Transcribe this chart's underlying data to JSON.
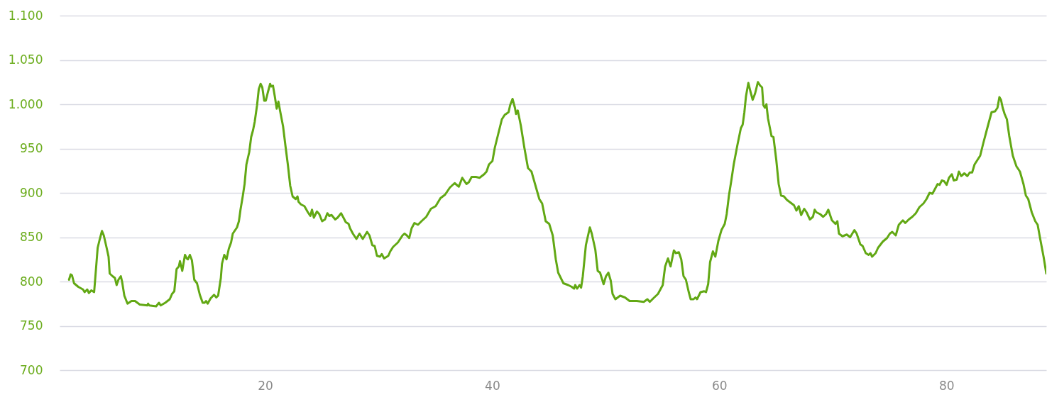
{
  "chart_data": {
    "type": "line",
    "color": "#62a814",
    "grid": "y",
    "xlim": [
      1.9,
      88.8
    ],
    "xticks": [
      20,
      40,
      60,
      80
    ],
    "ylim": [
      700,
      1100
    ],
    "yticks": [
      700,
      750,
      800,
      850,
      900,
      950,
      {
        "value": 1000,
        "label": "1.000"
      },
      {
        "value": 1050,
        "label": "1.050"
      },
      {
        "value": 1100,
        "label": "1.100"
      }
    ],
    "x": [
      2.73,
      2.87,
      2.99,
      3.05,
      3.17,
      3.54,
      3.96,
      4.1,
      4.33,
      4.48,
      4.69,
      4.94,
      5.04,
      5.25,
      5.42,
      5.63,
      5.79,
      6.04,
      6.21,
      6.31,
      6.56,
      6.77,
      6.92,
      7.08,
      7.29,
      7.4,
      7.6,
      7.88,
      8.23,
      8.54,
      8.96,
      9.63,
      9.69,
      9.8,
      10.4,
      10.65,
      10.8,
      11.2,
      11.6,
      11.8,
      12.0,
      12.2,
      12.4,
      12.5,
      12.7,
      12.94,
      13.1,
      13.2,
      13.37,
      13.55,
      13.76,
      14.0,
      14.25,
      14.5,
      14.66,
      14.8,
      14.94,
      15.2,
      15.5,
      15.7,
      15.86,
      16.1,
      16.2,
      16.4,
      16.6,
      16.8,
      17.0,
      17.15,
      17.52,
      17.69,
      17.83,
      18.04,
      18.19,
      18.35,
      18.6,
      18.77,
      18.94,
      19.08,
      19.29,
      19.44,
      19.6,
      19.75,
      19.92,
      20.06,
      20.23,
      20.44,
      20.54,
      20.69,
      20.85,
      21.02,
      21.17,
      21.31,
      21.58,
      21.79,
      22.0,
      22.21,
      22.42,
      22.69,
      22.85,
      22.94,
      23.15,
      23.46,
      23.77,
      23.98,
      24.13,
      24.29,
      24.56,
      24.77,
      25.02,
      25.27,
      25.48,
      25.65,
      25.85,
      26.17,
      26.38,
      26.69,
      26.9,
      27.1,
      27.35,
      27.48,
      27.73,
      28.04,
      28.31,
      28.6,
      28.98,
      29.19,
      29.44,
      29.65,
      29.85,
      30.12,
      30.27,
      30.48,
      30.85,
      31.02,
      31.27,
      31.69,
      32.1,
      32.27,
      32.48,
      32.69,
      32.9,
      33.15,
      33.46,
      33.77,
      34.19,
      34.6,
      35.02,
      35.44,
      35.85,
      36.27,
      36.69,
      37.06,
      37.36,
      37.73,
      37.94,
      38.19,
      38.56,
      38.88,
      39.29,
      39.5,
      39.71,
      40.02,
      40.23,
      40.54,
      40.85,
      41.1,
      41.44,
      41.58,
      41.79,
      42.0,
      42.1,
      42.25,
      42.52,
      42.83,
      43.15,
      43.46,
      43.77,
      44.15,
      44.4,
      44.71,
      45.02,
      45.33,
      45.6,
      45.81,
      46.27,
      46.69,
      47.0,
      47.21,
      47.31,
      47.48,
      47.69,
      47.83,
      47.98,
      48.25,
      48.6,
      48.77,
      49.08,
      49.29,
      49.5,
      49.81,
      50.02,
      50.23,
      50.44,
      50.6,
      50.85,
      51.27,
      51.69,
      52.1,
      52.73,
      53.35,
      53.67,
      53.88,
      54.19,
      54.6,
      55.02,
      55.23,
      55.48,
      55.71,
      56.0,
      56.17,
      56.44,
      56.65,
      56.85,
      57.06,
      57.31,
      57.48,
      57.73,
      57.9,
      58.04,
      58.35,
      58.67,
      58.83,
      59.02,
      59.19,
      59.44,
      59.65,
      59.92,
      60.19,
      60.48,
      60.65,
      60.85,
      61.06,
      61.27,
      61.58,
      61.9,
      62.06,
      62.21,
      62.35,
      62.56,
      62.73,
      62.94,
      63.15,
      63.4,
      63.6,
      63.77,
      63.88,
      64.02,
      64.15,
      64.29,
      64.6,
      64.77,
      65.02,
      65.23,
      65.44,
      65.69,
      65.96,
      66.27,
      66.58,
      66.79,
      67.0,
      67.21,
      67.48,
      67.69,
      67.98,
      68.25,
      68.4,
      68.56,
      68.88,
      69.15,
      69.4,
      69.6,
      69.92,
      70.23,
      70.4,
      70.54,
      70.85,
      71.23,
      71.52,
      71.9,
      72.1,
      72.42,
      72.63,
      72.9,
      73.15,
      73.31,
      73.46,
      73.77,
      73.98,
      74.4,
      74.77,
      75.02,
      75.23,
      75.54,
      75.81,
      76.17,
      76.38,
      76.69,
      77.0,
      77.31,
      77.63,
      77.98,
      78.25,
      78.52,
      78.77,
      78.98,
      79.23,
      79.4,
      79.6,
      79.81,
      80.02,
      80.23,
      80.48,
      80.65,
      80.92,
      81.1,
      81.31,
      81.58,
      81.85,
      82.06,
      82.27,
      82.48,
      82.73,
      82.98,
      83.25,
      83.56,
      83.98,
      84.29,
      84.5,
      84.67,
      84.81,
      84.96,
      85.13,
      85.33,
      85.54,
      85.85,
      86.17,
      86.48,
      86.79,
      87.0,
      87.21,
      87.52,
      87.83,
      88.04,
      88.25,
      88.56,
      88.8
    ],
    "values": [
      802,
      808,
      807,
      804,
      798,
      794,
      791,
      788,
      791,
      787,
      790,
      788,
      804,
      838,
      847,
      857,
      852,
      838,
      828,
      809,
      806,
      804,
      796,
      802,
      806,
      800,
      784,
      775,
      778,
      778,
      774,
      773,
      775,
      773,
      772,
      776,
      773,
      776,
      780,
      786,
      789,
      814,
      817,
      823,
      812,
      830,
      826,
      825,
      830,
      824,
      802,
      798,
      785,
      776,
      776,
      778,
      775,
      781,
      785,
      782,
      784,
      804,
      820,
      830,
      825,
      837,
      844,
      854,
      861,
      868,
      881,
      897,
      910,
      932,
      946,
      963,
      971,
      980,
      999,
      1017,
      1023,
      1019,
      1004,
      1004,
      1013,
      1023,
      1020,
      1021,
      1009,
      995,
      1003,
      993,
      975,
      953,
      932,
      908,
      896,
      893,
      896,
      890,
      887,
      885,
      878,
      874,
      881,
      872,
      879,
      876,
      868,
      870,
      877,
      874,
      875,
      870,
      872,
      877,
      872,
      867,
      865,
      860,
      854,
      848,
      854,
      848,
      856,
      852,
      841,
      840,
      829,
      828,
      831,
      826,
      829,
      834,
      839,
      844,
      852,
      854,
      852,
      849,
      860,
      866,
      864,
      868,
      873,
      882,
      885,
      894,
      898,
      906,
      911,
      907,
      917,
      910,
      912,
      918,
      918,
      917,
      921,
      924,
      932,
      936,
      951,
      967,
      983,
      988,
      991,
      999,
      1006,
      996,
      989,
      993,
      976,
      951,
      928,
      924,
      910,
      893,
      888,
      868,
      865,
      852,
      825,
      810,
      798,
      796,
      794,
      792,
      796,
      792,
      796,
      793,
      806,
      841,
      861,
      854,
      836,
      812,
      810,
      797,
      806,
      810,
      801,
      786,
      780,
      784,
      782,
      778,
      778,
      777,
      780,
      777,
      781,
      786,
      796,
      817,
      826,
      817,
      835,
      832,
      833,
      825,
      806,
      802,
      788,
      780,
      780,
      782,
      780,
      788,
      789,
      788,
      797,
      822,
      834,
      828,
      846,
      858,
      865,
      876,
      897,
      914,
      932,
      953,
      973,
      977,
      991,
      1009,
      1024,
      1015,
      1005,
      1012,
      1025,
      1021,
      1019,
      999,
      996,
      1000,
      984,
      964,
      963,
      937,
      910,
      897,
      896,
      892,
      889,
      886,
      880,
      885,
      875,
      882,
      878,
      870,
      873,
      881,
      878,
      876,
      873,
      876,
      881,
      869,
      865,
      868,
      854,
      851,
      853,
      850,
      858,
      854,
      842,
      840,
      832,
      830,
      832,
      828,
      832,
      838,
      845,
      849,
      854,
      856,
      852,
      864,
      869,
      866,
      870,
      873,
      877,
      884,
      888,
      893,
      900,
      899,
      904,
      910,
      909,
      914,
      913,
      909,
      917,
      921,
      914,
      915,
      924,
      919,
      922,
      919,
      923,
      923,
      932,
      937,
      942,
      956,
      971,
      991,
      992,
      996,
      1008,
      1005,
      996,
      989,
      983,
      964,
      942,
      930,
      924,
      910,
      897,
      893,
      878,
      868,
      864,
      849,
      828,
      809
    ]
  }
}
